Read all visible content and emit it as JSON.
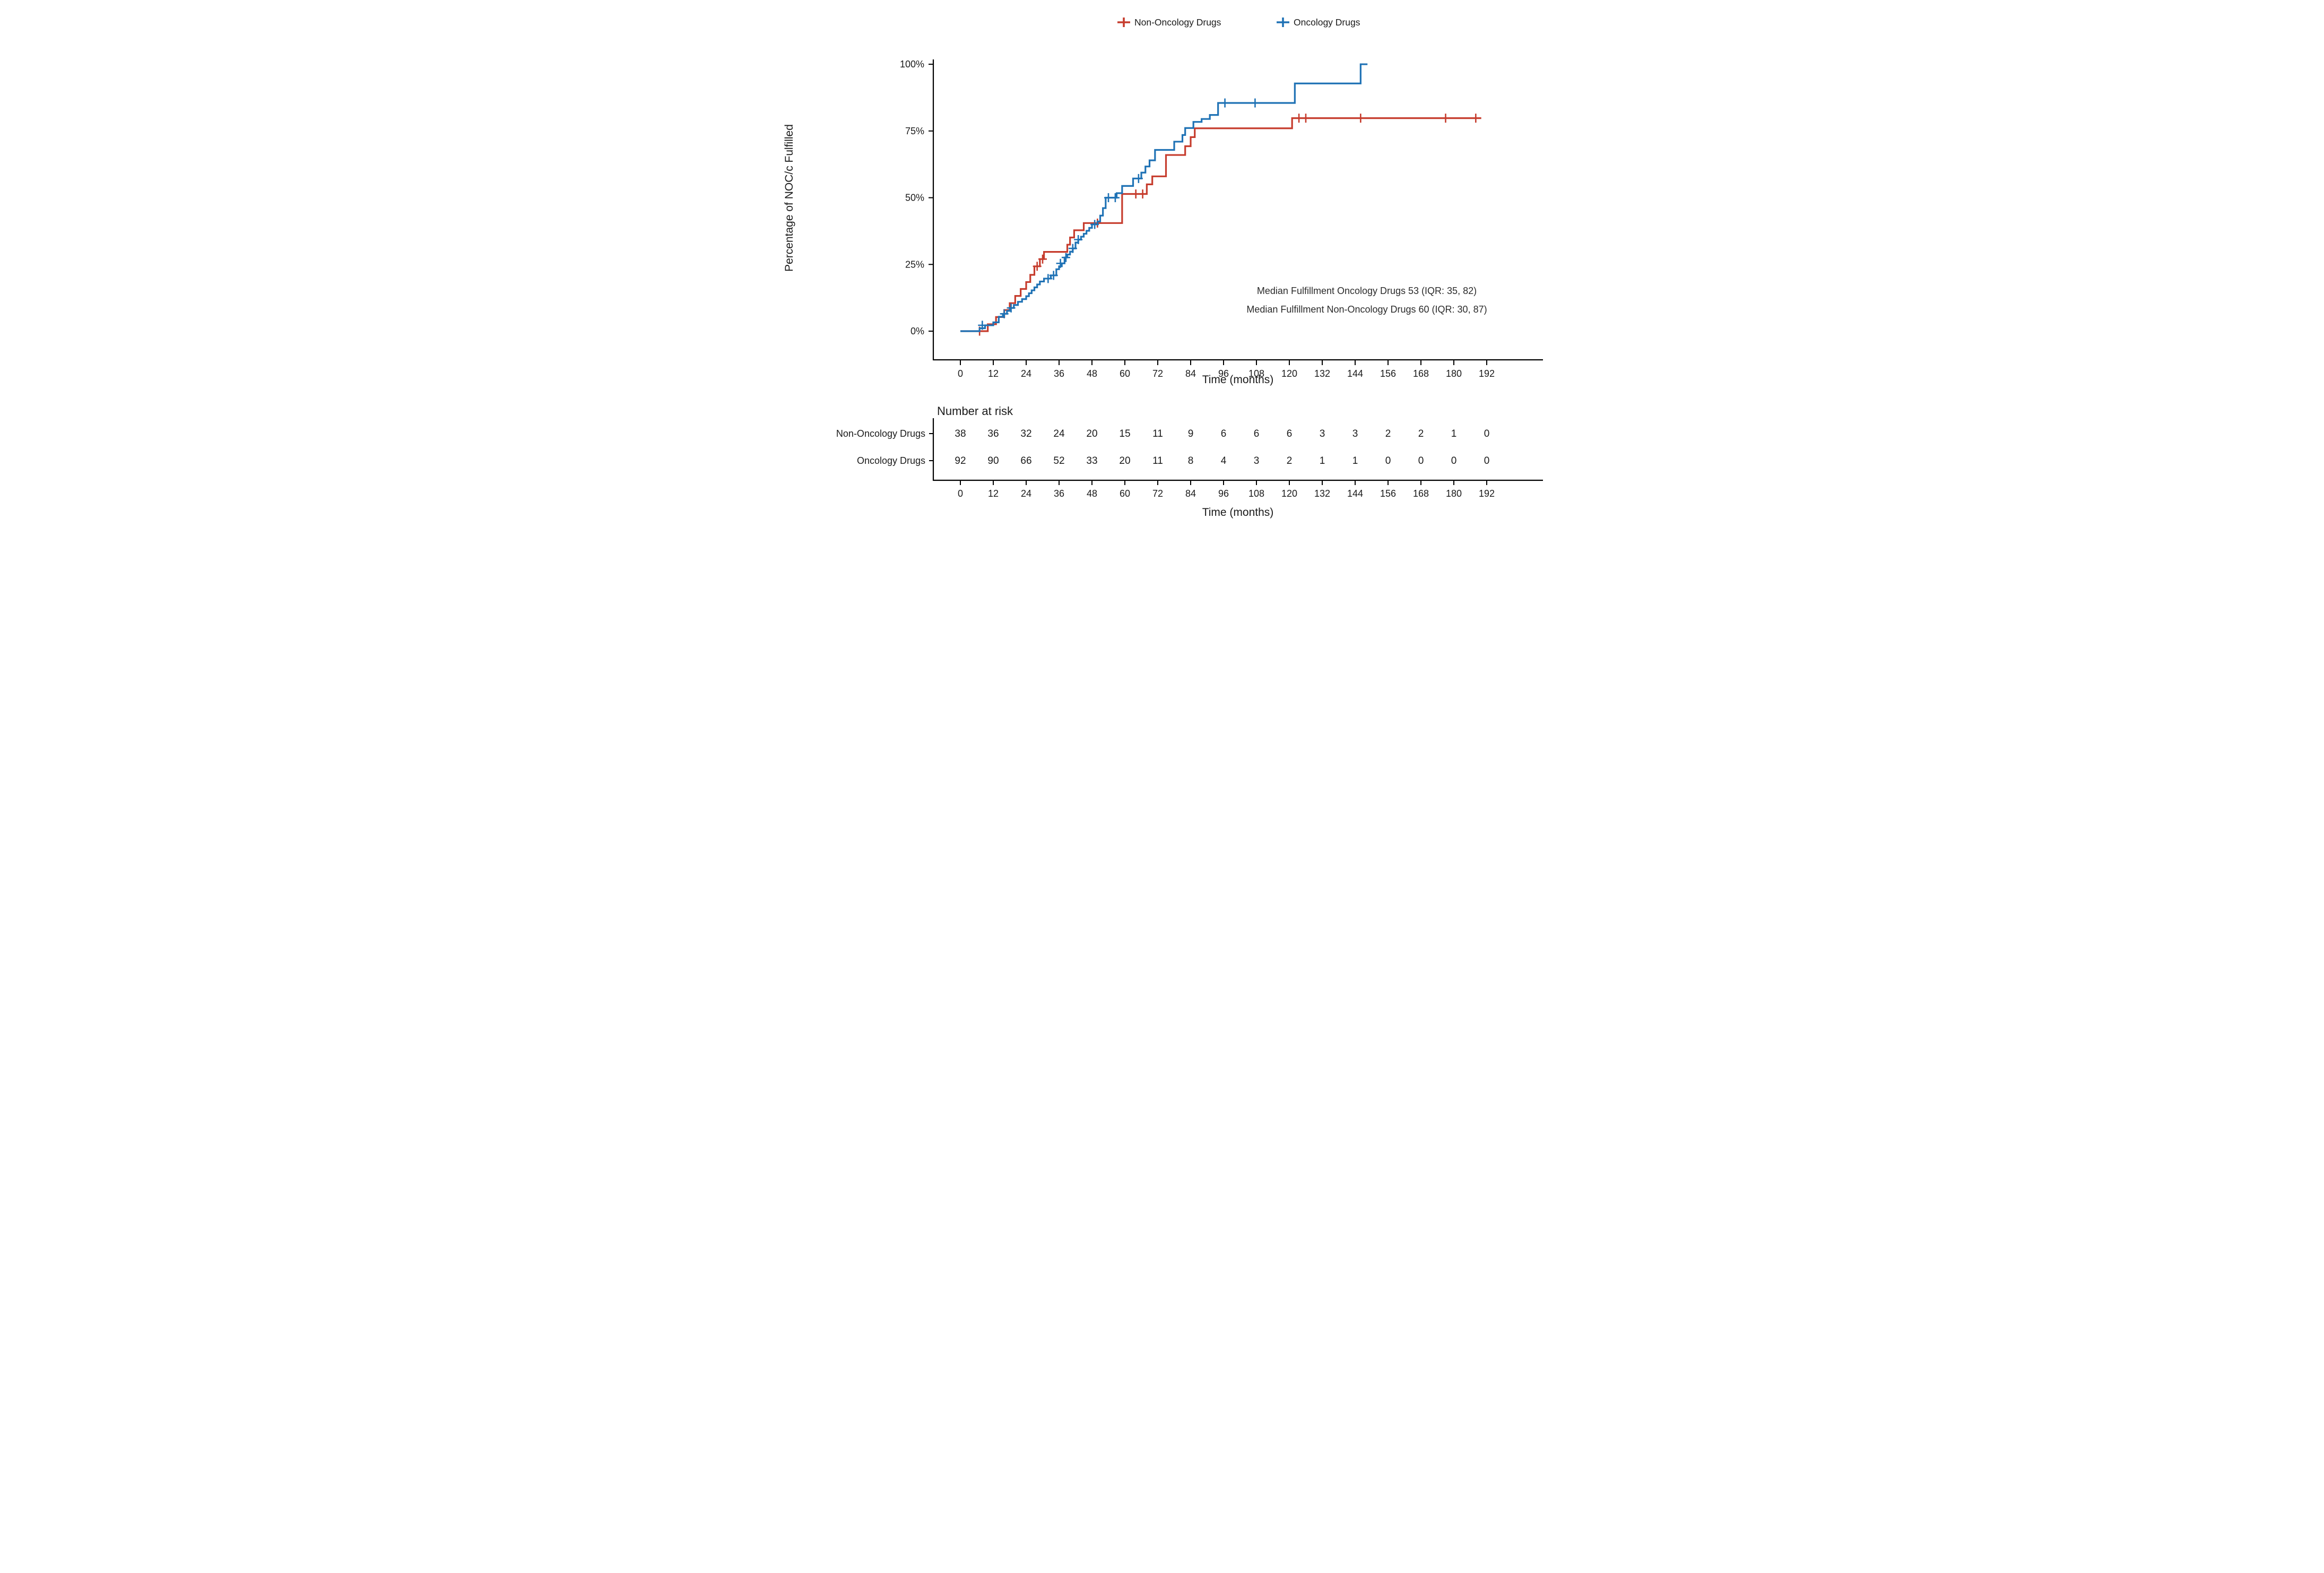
{
  "figure": {
    "y_axis_title": "Percentage of NOC/c Fulfilled",
    "x_axis_title": "Time (months)",
    "risk_x_axis_title": "Time (months)"
  },
  "chart_data": {
    "type": "line",
    "subtype": "kaplan-meier-step",
    "title": "",
    "xlabel": "Time (months)",
    "ylabel": "Percentage of NOC/c Fulfilled",
    "xlim": [
      0,
      192
    ],
    "ylim": [
      0,
      100
    ],
    "grid": false,
    "legend_position": "top",
    "x_ticks": [
      0,
      12,
      24,
      36,
      48,
      60,
      72,
      84,
      96,
      108,
      120,
      132,
      144,
      156,
      168,
      180,
      192
    ],
    "y_ticks": [
      {
        "value": 0,
        "label": "0%"
      },
      {
        "value": 25,
        "label": "25%"
      },
      {
        "value": 50,
        "label": "50%"
      },
      {
        "value": 75,
        "label": "75%"
      },
      {
        "value": 100,
        "label": "100%"
      }
    ],
    "series": [
      {
        "name": "Non-Oncology Drugs",
        "color": "#C63C2D",
        "median_months": 60,
        "iqr": [
          30,
          87
        ],
        "steps": [
          [
            0,
            0
          ],
          [
            10,
            2.6
          ],
          [
            13,
            5.3
          ],
          [
            16,
            7.9
          ],
          [
            18,
            10.5
          ],
          [
            20,
            13.2
          ],
          [
            22,
            15.8
          ],
          [
            24,
            18.4
          ],
          [
            25.5,
            21.1
          ],
          [
            27,
            24.3
          ],
          [
            29,
            27
          ],
          [
            30.5,
            29.7
          ],
          [
            39,
            32.4
          ],
          [
            40,
            35.1
          ],
          [
            41.5,
            37.8
          ],
          [
            45,
            40.5
          ],
          [
            59,
            51.4
          ],
          [
            68,
            55
          ],
          [
            70,
            58
          ],
          [
            75,
            66
          ],
          [
            82,
            69.3
          ],
          [
            84,
            72.7
          ],
          [
            85.5,
            76
          ],
          [
            121,
            79.8
          ],
          [
            190,
            79.8
          ]
        ],
        "censors": [
          [
            7,
            0
          ],
          [
            28,
            24.3
          ],
          [
            30,
            27
          ],
          [
            50,
            40.5
          ],
          [
            64,
            51.4
          ],
          [
            66.5,
            51.4
          ],
          [
            123.5,
            79.8
          ],
          [
            126,
            79.8
          ],
          [
            146,
            79.8
          ],
          [
            177,
            79.8
          ],
          [
            188,
            79.8
          ]
        ]
      },
      {
        "name": "Oncology Drugs",
        "color": "#1F72B5",
        "median_months": 53,
        "iqr": [
          35,
          82
        ],
        "steps": [
          [
            0,
            0
          ],
          [
            7,
            1.1
          ],
          [
            9,
            2.2
          ],
          [
            12,
            3.3
          ],
          [
            14,
            5.4
          ],
          [
            15.5,
            6.5
          ],
          [
            17,
            7.6
          ],
          [
            18,
            8.7
          ],
          [
            19.5,
            9.8
          ],
          [
            21,
            11
          ],
          [
            22.5,
            12
          ],
          [
            24,
            13.1
          ],
          [
            25,
            14.2
          ],
          [
            26,
            15.3
          ],
          [
            27,
            16.4
          ],
          [
            28,
            17.5
          ],
          [
            29,
            18.6
          ],
          [
            30.5,
            19.7
          ],
          [
            33,
            20.9
          ],
          [
            35,
            23.2
          ],
          [
            36,
            24.3
          ],
          [
            37,
            25.4
          ],
          [
            38,
            27.6
          ],
          [
            39,
            28.7
          ],
          [
            40,
            29.8
          ],
          [
            41,
            31
          ],
          [
            42,
            33.2
          ],
          [
            43,
            34.3
          ],
          [
            44,
            35.4
          ],
          [
            45,
            36.5
          ],
          [
            46,
            37.6
          ],
          [
            47,
            38.7
          ],
          [
            48,
            40
          ],
          [
            50,
            41.1
          ],
          [
            51,
            43.3
          ],
          [
            52,
            46.1
          ],
          [
            53,
            50
          ],
          [
            57,
            51.7
          ],
          [
            59,
            54.4
          ],
          [
            63,
            57.2
          ],
          [
            66,
            59.4
          ],
          [
            67.5,
            61.7
          ],
          [
            69,
            64
          ],
          [
            71,
            67.9
          ],
          [
            78,
            71
          ],
          [
            81,
            73.5
          ],
          [
            82,
            76.1
          ],
          [
            85,
            78.4
          ],
          [
            88,
            79.5
          ],
          [
            91,
            81
          ],
          [
            94,
            85.5
          ],
          [
            122,
            92.8
          ],
          [
            146,
            100
          ],
          [
            148.5,
            100
          ]
        ],
        "censors": [
          [
            8,
            2.2
          ],
          [
            16,
            6.5
          ],
          [
            18.5,
            8.7
          ],
          [
            32,
            19.7
          ],
          [
            34,
            20.9
          ],
          [
            36.5,
            25.4
          ],
          [
            38.5,
            27.6
          ],
          [
            41,
            31
          ],
          [
            43,
            34.3
          ],
          [
            49,
            40
          ],
          [
            54,
            50
          ],
          [
            56.5,
            50
          ],
          [
            65,
            57.2
          ],
          [
            96.5,
            85.5
          ],
          [
            107.5,
            85.5
          ]
        ]
      }
    ],
    "annotations": [
      "Median Fulfillment Oncology Drugs 53 (IQR: 35, 82)",
      "Median Fulfillment Non-Oncology Drugs 60 (IQR: 30, 87)"
    ],
    "risk_table": {
      "title": "Number at risk",
      "xlabel": "Time (months)",
      "times": [
        0,
        12,
        24,
        36,
        48,
        60,
        72,
        84,
        96,
        108,
        120,
        132,
        144,
        156,
        168,
        180,
        192
      ],
      "rows": [
        {
          "label": "Non-Oncology Drugs",
          "color": "#C63C2D",
          "values": [
            38,
            36,
            32,
            24,
            20,
            15,
            11,
            9,
            6,
            6,
            6,
            3,
            3,
            2,
            2,
            1,
            0
          ]
        },
        {
          "label": "Oncology Drugs",
          "color": "#1F72B5",
          "values": [
            92,
            90,
            66,
            52,
            33,
            20,
            11,
            8,
            4,
            3,
            2,
            1,
            1,
            0,
            0,
            0,
            0
          ]
        }
      ]
    }
  }
}
